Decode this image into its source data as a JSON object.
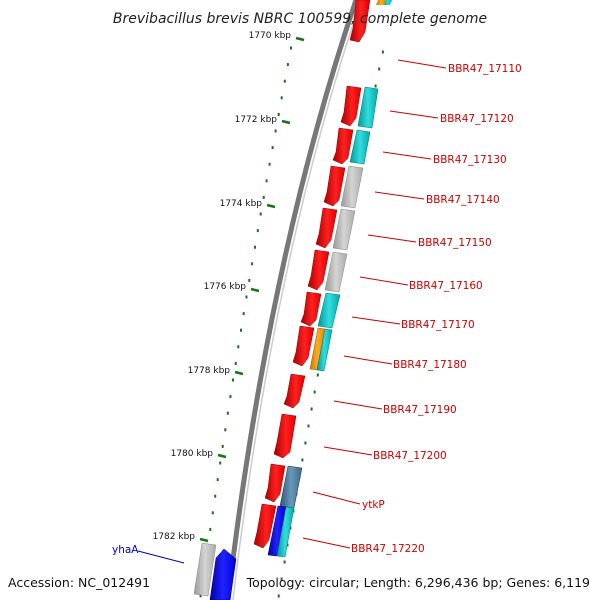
{
  "title": "Brevibacillus brevis NBRC 100599, complete genome",
  "accession": "Accession: NC_012491",
  "topology": "Topology: circular; Length: 6,296,436 bp; Genes: 6,119",
  "kbp_ticks": [
    "1770 kbp",
    "1772 kbp",
    "1774 kbp",
    "1776 kbp",
    "1778 kbp",
    "1780 kbp",
    "1782 kbp"
  ],
  "gene_labels": [
    "BBR47_17110",
    "BBR47_17120",
    "BBR47_17130",
    "BBR47_17140",
    "BBR47_17150",
    "BBR47_17160",
    "BBR47_17170",
    "BBR47_17180",
    "BBR47_17190",
    "BBR47_17200",
    "ytkP",
    "BBR47_17220"
  ],
  "left_gene_label": "yhaA",
  "colors": {
    "red": "#ff0000",
    "cyan": "#00cccc",
    "gray": "#bbbbbb",
    "orange": "#ff9900",
    "steel": "#4477aa",
    "blue": "#0000ff",
    "tick_green": "#117711",
    "backbone": "#888888"
  }
}
